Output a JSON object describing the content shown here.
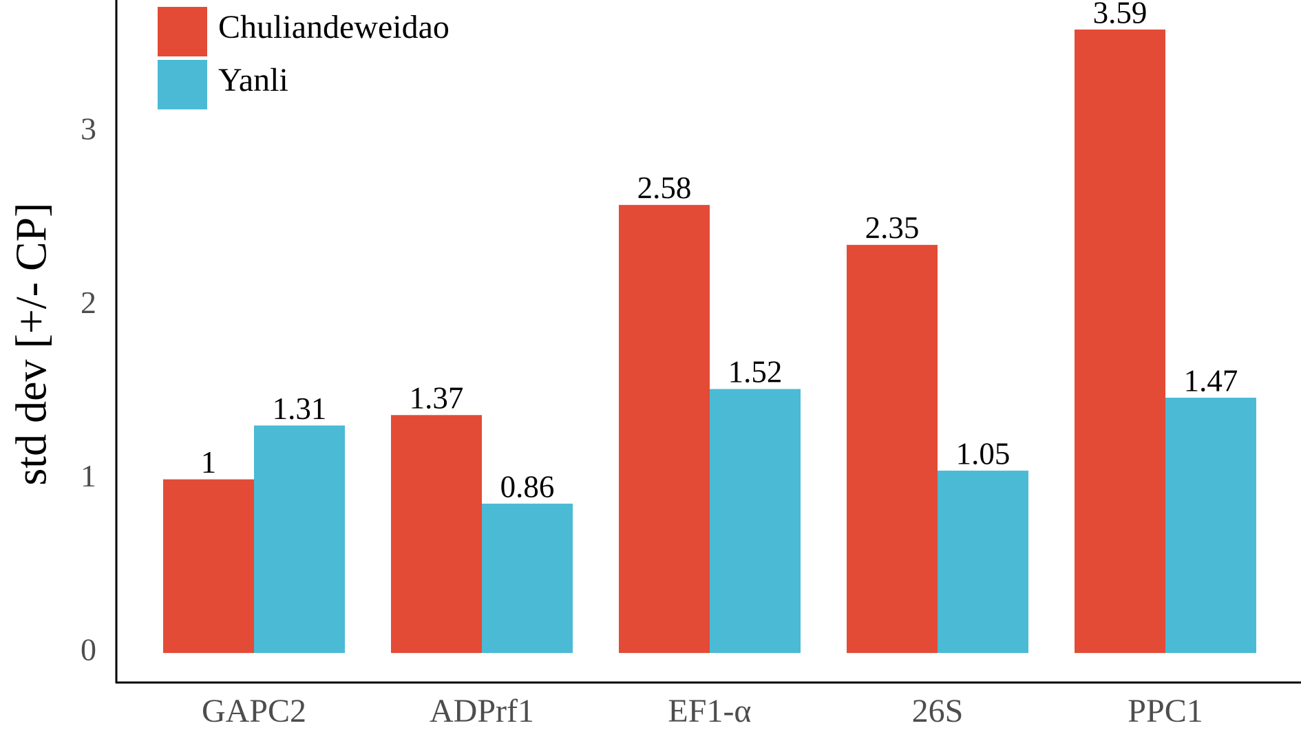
{
  "chart_data": {
    "type": "bar",
    "y_label": "std dev [+/- CP]",
    "categories": [
      "GAPC2",
      "ADPrf1",
      "EF1-α",
      "26S",
      "PPC1"
    ],
    "series": [
      {
        "name": "Chuliandeweidao",
        "color": "#E34B36",
        "values": [
          1,
          1.37,
          2.58,
          2.35,
          3.59
        ]
      },
      {
        "name": "Yanli",
        "color": "#4BBAD5",
        "values": [
          1.31,
          0.86,
          1.52,
          1.05,
          1.47
        ]
      }
    ],
    "ylim": [
      -0.17,
      3.76
    ],
    "yticks": [
      0,
      1,
      2,
      3
    ],
    "grid": false,
    "legend": "top-left"
  }
}
